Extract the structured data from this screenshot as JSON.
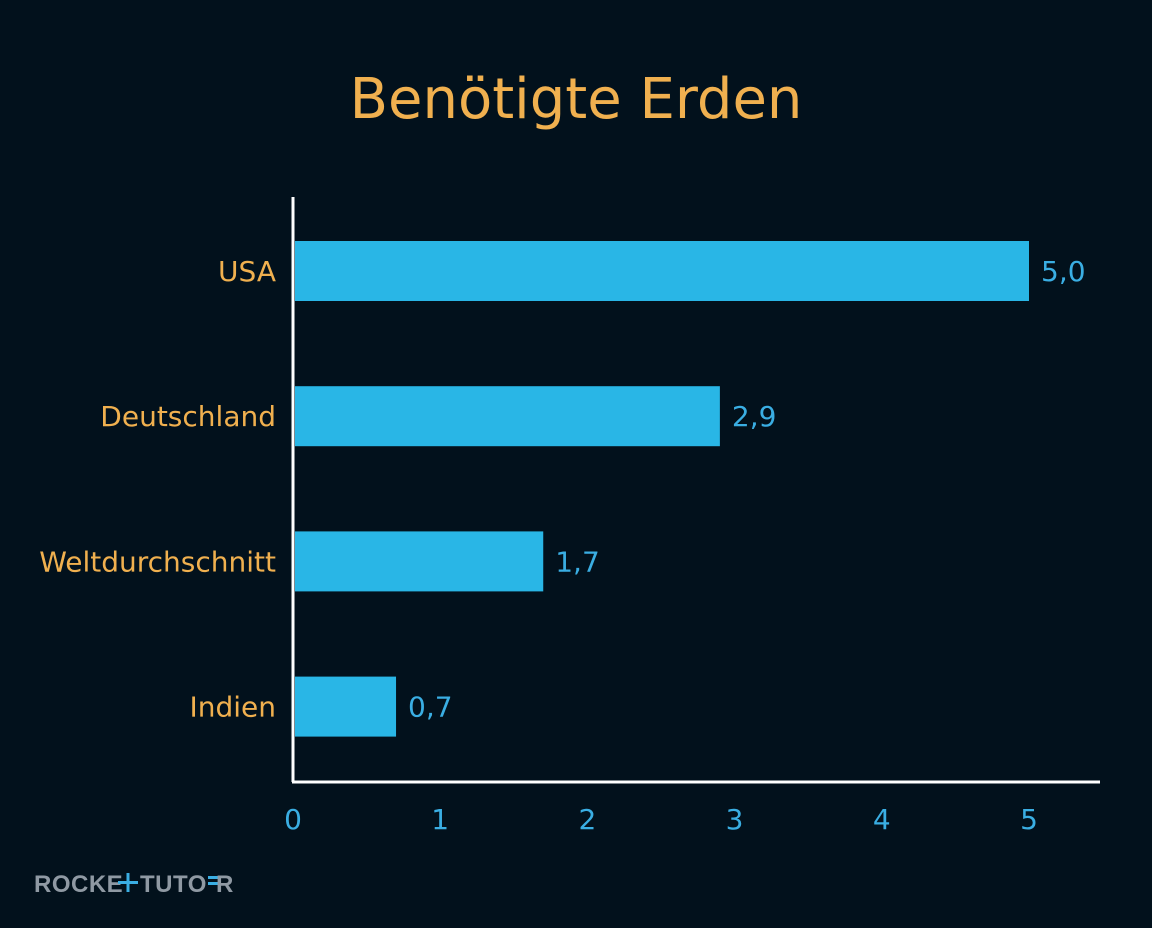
{
  "chart_data": {
    "type": "bar",
    "orientation": "horizontal",
    "title": "Benötigte Erden",
    "categories": [
      "USA",
      "Deutschland",
      "Weltdurchschnitt",
      "Indien"
    ],
    "values": [
      5.0,
      2.9,
      1.7,
      0.7
    ],
    "value_labels": [
      "5,0",
      "2,9",
      "1,7",
      "0,7"
    ],
    "xlim": [
      0,
      5.5
    ],
    "x_ticks": [
      0,
      1,
      2,
      3,
      4,
      5
    ],
    "x_tick_labels": [
      "0",
      "1",
      "2",
      "3",
      "4",
      "5"
    ],
    "xlabel": "",
    "ylabel": "",
    "grid": false,
    "colors": {
      "background": "#02111c",
      "bar": "#29b6e6",
      "title": "#f0b04f",
      "category_label": "#f0b04f",
      "value_label": "#3aaee3",
      "tick_label": "#3aaee3",
      "axis": "#ffffff"
    }
  },
  "watermark": "ROCKETUTOR"
}
